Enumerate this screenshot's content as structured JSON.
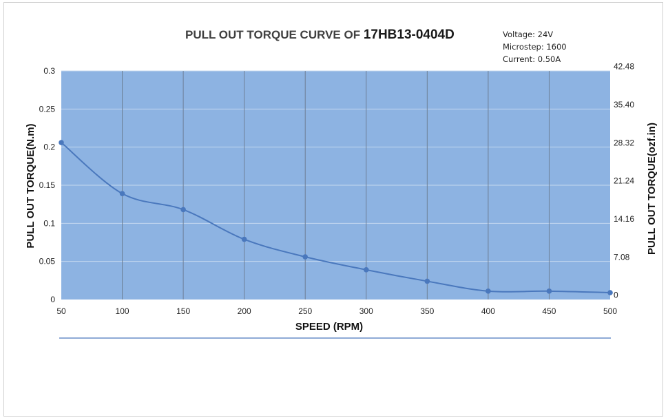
{
  "title_part1": "PULL OUT TORQUE  CURVE OF ",
  "title_part2": "17HB13-0404D",
  "info": [
    "Voltage: 24V",
    "Microstep: 1600",
    "Current: 0.50A"
  ],
  "colors": {
    "plot_bg": "#8db3e2",
    "line": "#4a78bd",
    "grid_v": "#6d7f96",
    "grid_h": "#c5d8ef"
  },
  "chart_data": {
    "type": "line",
    "title": "PULL OUT TORQUE  CURVE OF 17HB13-0404D",
    "xlabel": "SPEED (RPM)",
    "ylabel": "PULL OUT TORQUE(N.m)",
    "y2label": "PULL OUT TORQUE(ozf.in)",
    "x": [
      50,
      100,
      150,
      200,
      250,
      300,
      350,
      400,
      450,
      500
    ],
    "series": [
      {
        "values": [
          0.206,
          0.139,
          0.118,
          0.079,
          0.056,
          0.039,
          0.024,
          0.011,
          0.011,
          0.009
        ]
      }
    ],
    "xlim": [
      50,
      500
    ],
    "ylim": [
      0,
      0.3
    ],
    "x_ticks": [
      "50",
      "100",
      "150",
      "200",
      "250",
      "300",
      "350",
      "400",
      "450",
      "500"
    ],
    "y_ticks": [
      "0",
      "0.05",
      "0.1",
      "0.15",
      "0.2",
      "0.25",
      "0.3"
    ],
    "y2_ticks": [
      "0",
      "7.08",
      "14.16",
      "21.24",
      "28.32",
      "35.40",
      "42.48"
    ],
    "y2_tick_values": [
      0,
      7.08,
      14.16,
      21.24,
      28.32,
      35.4,
      42.48
    ],
    "y2lim": [
      -0.81,
      41.67
    ],
    "grid": true
  }
}
